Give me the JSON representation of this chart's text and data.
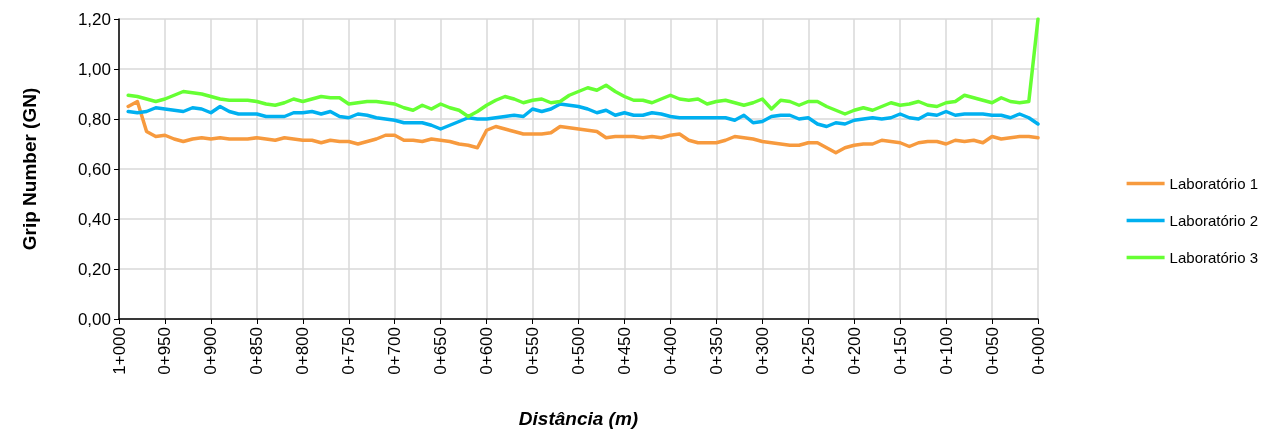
{
  "chart_data": {
    "type": "line",
    "xlabel": "Distância (m)",
    "ylabel": "Grip Number (GN)",
    "categories": [
      "1+000",
      null,
      null,
      null,
      null,
      "0+950",
      null,
      null,
      null,
      null,
      "0+900",
      null,
      null,
      null,
      null,
      "0+850",
      null,
      null,
      null,
      null,
      "0+800",
      null,
      null,
      null,
      null,
      "0+750",
      null,
      null,
      null,
      null,
      "0+700",
      null,
      null,
      null,
      null,
      "0+650",
      null,
      null,
      null,
      null,
      "0+600",
      null,
      null,
      null,
      null,
      "0+550",
      null,
      null,
      null,
      null,
      "0+500",
      null,
      null,
      null,
      null,
      "0+450",
      null,
      null,
      null,
      null,
      "0+400",
      null,
      null,
      null,
      null,
      "0+350",
      null,
      null,
      null,
      null,
      "0+300",
      null,
      null,
      null,
      null,
      "0+250",
      null,
      null,
      null,
      null,
      "0+200",
      null,
      null,
      null,
      null,
      "0+150",
      null,
      null,
      null,
      null,
      "0+100",
      null,
      null,
      null,
      null,
      "0+050",
      null,
      null,
      null,
      null,
      "0+000"
    ],
    "series": [
      {
        "name": "Laboratório 1",
        "color": "#f79a3e",
        "values": [
          null,
          0.85,
          0.87,
          0.75,
          0.73,
          0.735,
          0.72,
          0.71,
          0.72,
          0.725,
          0.72,
          0.725,
          0.72,
          0.72,
          0.72,
          0.725,
          0.72,
          0.715,
          0.725,
          0.72,
          0.715,
          0.715,
          0.705,
          0.715,
          0.71,
          0.71,
          0.7,
          0.71,
          0.72,
          0.735,
          0.735,
          0.715,
          0.715,
          0.71,
          0.72,
          0.715,
          0.71,
          0.7,
          0.695,
          0.685,
          0.755,
          0.77,
          0.76,
          0.75,
          0.74,
          0.74,
          0.74,
          0.745,
          0.77,
          0.765,
          0.76,
          0.755,
          0.75,
          0.725,
          0.73,
          0.73,
          0.73,
          0.725,
          0.73,
          0.725,
          0.735,
          0.74,
          0.715,
          0.705,
          0.705,
          0.705,
          0.715,
          0.73,
          0.725,
          0.72,
          0.71,
          0.705,
          0.7,
          0.695,
          0.695,
          0.705,
          0.705,
          0.685,
          0.665,
          0.685,
          0.695,
          0.7,
          0.7,
          0.715,
          0.71,
          0.705,
          0.69,
          0.705,
          0.71,
          0.71,
          0.7,
          0.715,
          0.71,
          0.715,
          0.705,
          0.73,
          0.72,
          0.725,
          0.73,
          0.73,
          0.725
        ]
      },
      {
        "name": "Laboratório 2",
        "color": "#00b0f0",
        "values": [
          null,
          0.83,
          0.825,
          0.83,
          0.845,
          0.84,
          0.835,
          0.83,
          0.845,
          0.84,
          0.825,
          0.85,
          0.83,
          0.82,
          0.82,
          0.82,
          0.81,
          0.81,
          0.81,
          0.825,
          0.825,
          0.83,
          0.82,
          0.83,
          0.81,
          0.805,
          0.82,
          0.815,
          0.805,
          0.8,
          0.795,
          0.785,
          0.785,
          0.785,
          0.775,
          0.76,
          0.775,
          0.79,
          0.805,
          0.8,
          0.8,
          0.805,
          0.81,
          0.815,
          0.81,
          0.84,
          0.83,
          0.84,
          0.86,
          0.855,
          0.85,
          0.84,
          0.825,
          0.835,
          0.815,
          0.825,
          0.815,
          0.815,
          0.825,
          0.82,
          0.81,
          0.805,
          0.805,
          0.805,
          0.805,
          0.805,
          0.805,
          0.795,
          0.815,
          0.785,
          0.79,
          0.81,
          0.815,
          0.815,
          0.8,
          0.805,
          0.78,
          0.77,
          0.785,
          0.78,
          0.795,
          0.8,
          0.805,
          0.8,
          0.805,
          0.82,
          0.805,
          0.8,
          0.82,
          0.815,
          0.83,
          0.815,
          0.82,
          0.82,
          0.82,
          0.815,
          0.815,
          0.805,
          0.82,
          0.805,
          0.78
        ]
      },
      {
        "name": "Laboratório 3",
        "color": "#66ff33",
        "values": [
          null,
          0.895,
          0.89,
          0.88,
          0.87,
          0.88,
          0.895,
          0.91,
          0.905,
          0.9,
          0.89,
          0.88,
          0.875,
          0.875,
          0.875,
          0.87,
          0.86,
          0.855,
          0.865,
          0.88,
          0.87,
          0.88,
          0.89,
          0.885,
          0.885,
          0.86,
          0.865,
          0.87,
          0.87,
          0.865,
          0.86,
          0.845,
          0.835,
          0.855,
          0.84,
          0.86,
          0.845,
          0.835,
          0.81,
          0.83,
          0.855,
          0.875,
          0.89,
          0.88,
          0.865,
          0.875,
          0.88,
          0.865,
          0.87,
          0.895,
          0.91,
          0.925,
          0.915,
          0.935,
          0.91,
          0.89,
          0.875,
          0.875,
          0.865,
          0.88,
          0.895,
          0.88,
          0.875,
          0.88,
          0.86,
          0.87,
          0.875,
          0.865,
          0.855,
          0.865,
          0.88,
          0.84,
          0.875,
          0.87,
          0.855,
          0.87,
          0.87,
          0.85,
          0.835,
          0.82,
          0.835,
          0.845,
          0.835,
          0.85,
          0.865,
          0.855,
          0.86,
          0.87,
          0.855,
          0.85,
          0.865,
          0.87,
          0.895,
          0.885,
          0.875,
          0.865,
          0.885,
          0.87,
          0.865,
          0.87,
          1.2
        ]
      }
    ],
    "ylim": [
      0,
      1.2
    ],
    "yticks": [
      {
        "value": 0,
        "label": "0,00"
      },
      {
        "value": 0.2,
        "label": "0,20"
      },
      {
        "value": 0.4,
        "label": "0,40"
      },
      {
        "value": 0.6,
        "label": "0,60"
      },
      {
        "value": 0.8,
        "label": "0,80"
      },
      {
        "value": 1.0,
        "label": "1,00"
      },
      {
        "value": 1.2,
        "label": "1,20"
      }
    ],
    "grid": true,
    "legend": "right",
    "marker": "none",
    "line_style": "solid"
  }
}
